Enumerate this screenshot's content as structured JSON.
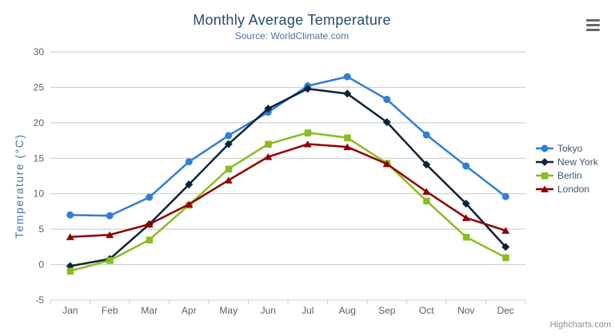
{
  "chart_data": {
    "type": "line",
    "title": "Monthly Average Temperature",
    "subtitle": "Source: WorldClimate.com",
    "xlabel": "",
    "ylabel": "Temperature (°C)",
    "categories": [
      "Jan",
      "Feb",
      "Mar",
      "Apr",
      "May",
      "Jun",
      "Jul",
      "Aug",
      "Sep",
      "Oct",
      "Nov",
      "Dec"
    ],
    "ylim": [
      -5,
      30
    ],
    "yticks": [
      -5,
      0,
      5,
      10,
      15,
      20,
      25,
      30
    ],
    "grid": "horizontal",
    "legend_position": "right",
    "series": [
      {
        "name": "Tokyo",
        "color": "#2f7ed8",
        "marker": "circle",
        "values": [
          7.0,
          6.9,
          9.5,
          14.5,
          18.2,
          21.5,
          25.2,
          26.5,
          23.3,
          18.3,
          13.9,
          9.6
        ]
      },
      {
        "name": "New York",
        "color": "#0d233a",
        "marker": "diamond",
        "values": [
          -0.2,
          0.8,
          5.7,
          11.3,
          17.0,
          22.0,
          24.8,
          24.1,
          20.1,
          14.1,
          8.6,
          2.5
        ]
      },
      {
        "name": "Berlin",
        "color": "#8bbc21",
        "marker": "square",
        "values": [
          -0.9,
          0.6,
          3.5,
          8.4,
          13.5,
          17.0,
          18.6,
          17.9,
          14.3,
          9.0,
          3.9,
          1.0
        ]
      },
      {
        "name": "London",
        "color": "#910000",
        "marker": "triangle",
        "values": [
          3.9,
          4.2,
          5.7,
          8.5,
          11.9,
          15.2,
          17.0,
          16.6,
          14.2,
          10.3,
          6.6,
          4.8
        ]
      }
    ],
    "credits": "Highcharts.com"
  },
  "colors": {
    "title": "#274b6d",
    "subtitle": "#4d759e",
    "axis_title": "#4572a7",
    "tick_label": "#606060",
    "grid": "#c8c8c8",
    "axis_line": "#c0d0e0",
    "legend_text": "#3e576f",
    "credits": "#8f8f8f"
  },
  "context_menu": {
    "icon": "hamburger-icon"
  }
}
